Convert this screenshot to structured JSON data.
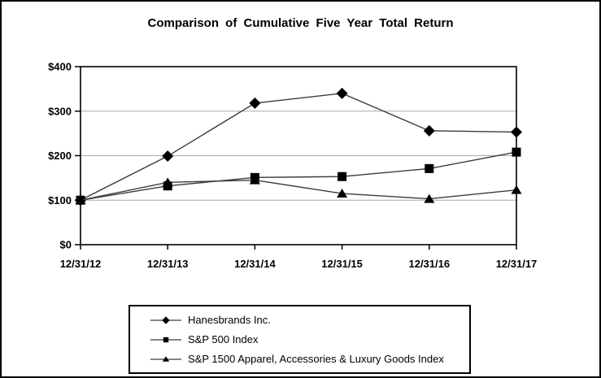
{
  "chart_data": {
    "type": "line",
    "title": "Comparison of Cumulative Five Year Total Return",
    "categories": [
      "12/31/12",
      "12/31/13",
      "12/31/14",
      "12/31/15",
      "12/31/16",
      "12/31/17"
    ],
    "series": [
      {
        "name": "Hanesbrands Inc.",
        "marker": "diamond",
        "values": [
          100,
          199,
          318,
          340,
          256,
          253
        ]
      },
      {
        "name": "S&P 500 Index",
        "marker": "square",
        "values": [
          100,
          132,
          151,
          153,
          171,
          208
        ]
      },
      {
        "name": "S&P 1500 Apparel, Accessories & Luxury Goods Index",
        "marker": "triangle",
        "values": [
          100,
          140,
          145,
          115,
          103,
          123
        ]
      }
    ],
    "y_ticks": [
      {
        "value": 0,
        "label": "$0"
      },
      {
        "value": 100,
        "label": "$100"
      },
      {
        "value": 200,
        "label": "$200"
      },
      {
        "value": 300,
        "label": "$300"
      },
      {
        "value": 400,
        "label": "$400"
      }
    ],
    "ylim": [
      0,
      400
    ],
    "xlabel": "",
    "ylabel": "",
    "grid": "horizontal",
    "legend_position": "bottom",
    "colors": {
      "line": "#3c3c3c",
      "marker": "#000000",
      "gridline": "#a9a9a9",
      "border": "#000000",
      "text": "#000000"
    }
  }
}
